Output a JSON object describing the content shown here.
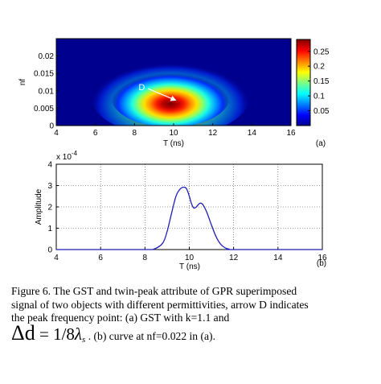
{
  "chart_data": [
    {
      "type": "heatmap",
      "panel_label": "(a)",
      "xlabel": "T (ns)",
      "ylabel": "nf",
      "xlim": [
        4,
        16
      ],
      "ylim": [
        0,
        0.025
      ],
      "xticks": [
        "4",
        "6",
        "8",
        "10",
        "12",
        "14",
        "16"
      ],
      "yticks": [
        "0",
        "0.005",
        "0.01",
        "0.015",
        "0.02"
      ],
      "colorbar_ticks": [
        "0.25",
        "0.2",
        "0.15",
        "0.1",
        "0.05"
      ],
      "colorbar_range": [
        0,
        0.29
      ],
      "colormap": "jet",
      "annotation": {
        "text": "D",
        "arrow_from": [
          8.7,
          0.0106
        ],
        "arrow_to": [
          10.1,
          0.0073
        ]
      },
      "peak": {
        "t": 10.0,
        "nf": 0.007,
        "value": 0.28
      },
      "background_color": "#00008f"
    },
    {
      "type": "line",
      "panel_label": "(b)",
      "xlabel": "T (ns)",
      "ylabel": "Amplitude",
      "y_exponent_label": "x 10",
      "y_exponent": "-4",
      "xlim": [
        4,
        16
      ],
      "ylim": [
        0,
        4
      ],
      "xticks": [
        "4",
        "6",
        "8",
        "10",
        "12",
        "14",
        "16"
      ],
      "yticks": [
        "0",
        "1",
        "2",
        "3",
        "4"
      ],
      "grid": true,
      "line_color": "#1f1fb8",
      "series": [
        {
          "x": [
            4,
            8.0,
            8.4,
            8.8,
            9.0,
            9.2,
            9.4,
            9.6,
            9.8,
            9.9,
            10.0,
            10.1,
            10.2,
            10.3,
            10.4,
            10.5,
            10.6,
            10.7,
            10.8,
            11.0,
            11.2,
            11.4,
            11.6,
            11.8,
            12.0,
            16
          ],
          "y": [
            0,
            0,
            0.02,
            0.3,
            0.85,
            1.7,
            2.5,
            2.85,
            2.92,
            2.8,
            2.5,
            2.15,
            1.95,
            1.98,
            2.1,
            2.18,
            2.12,
            1.95,
            1.72,
            1.15,
            0.62,
            0.27,
            0.09,
            0.02,
            0,
            0
          ]
        }
      ]
    }
  ],
  "caption": {
    "line1": "Figure 6. The GST and twin-peak attribute of GPR superimposed",
    "line2": "signal of two objects with different permittivities, arrow D indicates",
    "line3": "the peak frequency point: (a) GST with k=1.1 and",
    "formula_delta": "Δd",
    "formula_eq": " = 1/8",
    "formula_lambda": "λ",
    "formula_sub": "s",
    "tail": " . (b) curve at nf=0.022 in (a)."
  }
}
